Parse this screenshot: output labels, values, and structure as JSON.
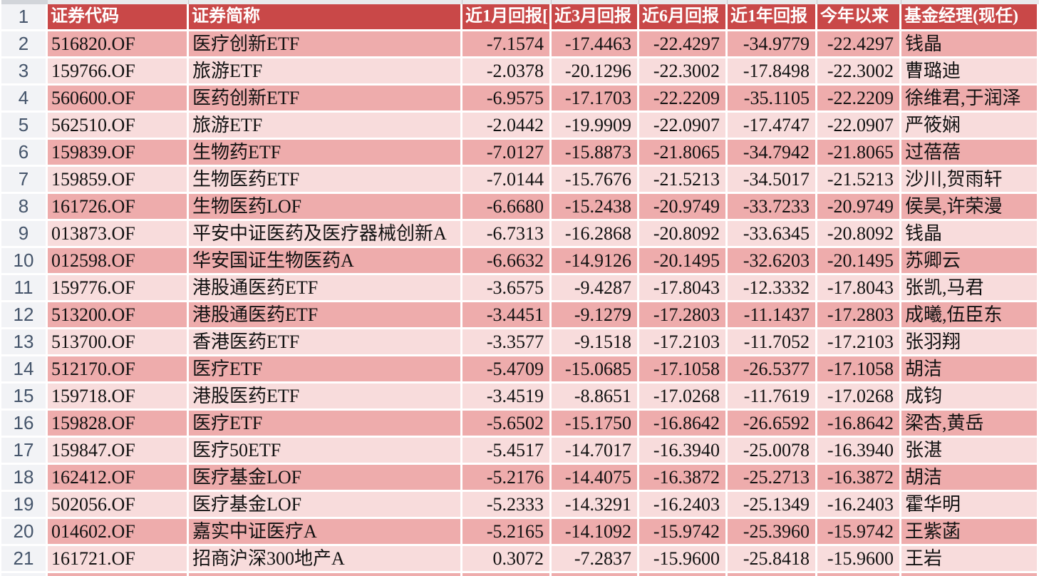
{
  "app": {
    "type": "spreadsheet",
    "view": "fund-returns-table"
  },
  "colors": {
    "header_bg": "#c94848",
    "row_dark": "#eeacac",
    "row_light": "#f8dcdc",
    "header_text": "#ffffff",
    "rownum_text": "#44546a"
  },
  "table": {
    "header_row_number": "1",
    "header": {
      "code": "证券代码",
      "name": "证券简称",
      "r1m": "近1月回报[",
      "r3m": "近3月回报",
      "r6m": "近6月回报",
      "r1y": "近1年回报",
      "ytd": "今年以来",
      "manager": "基金经理(现任)"
    },
    "rows": [
      {
        "row": "2",
        "code": "516820.OF",
        "name": "医疗创新ETF",
        "r1m": "-7.1574",
        "r3m": "-17.4463",
        "r6m": "-22.4297",
        "r1y": "-34.9779",
        "ytd": "-22.4297",
        "manager": "钱晶"
      },
      {
        "row": "3",
        "code": "159766.OF",
        "name": "旅游ETF",
        "r1m": "-2.0378",
        "r3m": "-20.1296",
        "r6m": "-22.3002",
        "r1y": "-17.8498",
        "ytd": "-22.3002",
        "manager": "曹璐迪"
      },
      {
        "row": "4",
        "code": "560600.OF",
        "name": "医药创新ETF",
        "r1m": "-6.9575",
        "r3m": "-17.1703",
        "r6m": "-22.2209",
        "r1y": "-35.1105",
        "ytd": "-22.2209",
        "manager": "徐维君,于润泽"
      },
      {
        "row": "5",
        "code": "562510.OF",
        "name": "旅游ETF",
        "r1m": "-2.0442",
        "r3m": "-19.9909",
        "r6m": "-22.0907",
        "r1y": "-17.4747",
        "ytd": "-22.0907",
        "manager": "严筱娴"
      },
      {
        "row": "6",
        "code": "159839.OF",
        "name": "生物药ETF",
        "r1m": "-7.0127",
        "r3m": "-15.8873",
        "r6m": "-21.8065",
        "r1y": "-34.7942",
        "ytd": "-21.8065",
        "manager": "过蓓蓓"
      },
      {
        "row": "7",
        "code": "159859.OF",
        "name": "生物医药ETF",
        "r1m": "-7.0144",
        "r3m": "-15.7676",
        "r6m": "-21.5213",
        "r1y": "-34.5017",
        "ytd": "-21.5213",
        "manager": "沙川,贺雨轩"
      },
      {
        "row": "8",
        "code": "161726.OF",
        "name": "生物医药LOF",
        "r1m": "-6.6680",
        "r3m": "-15.2438",
        "r6m": "-20.9749",
        "r1y": "-33.7233",
        "ytd": "-20.9749",
        "manager": "侯昊,许荣漫"
      },
      {
        "row": "9",
        "code": "013873.OF",
        "name": "平安中证医药及医疗器械创新A",
        "r1m": "-6.7313",
        "r3m": "-16.2868",
        "r6m": "-20.8092",
        "r1y": "-33.6345",
        "ytd": "-20.8092",
        "manager": "钱晶"
      },
      {
        "row": "10",
        "code": "012598.OF",
        "name": "华安国证生物医药A",
        "r1m": "-6.6632",
        "r3m": "-14.9126",
        "r6m": "-20.1495",
        "r1y": "-32.6203",
        "ytd": "-20.1495",
        "manager": "苏卿云"
      },
      {
        "row": "11",
        "code": "159776.OF",
        "name": "港股通医药ETF",
        "r1m": "-3.6575",
        "r3m": "-9.4287",
        "r6m": "-17.8043",
        "r1y": "-12.3332",
        "ytd": "-17.8043",
        "manager": "张凯,马君"
      },
      {
        "row": "12",
        "code": "513200.OF",
        "name": "港股通医药ETF",
        "r1m": "-3.4451",
        "r3m": "-9.1279",
        "r6m": "-17.2803",
        "r1y": "-11.1437",
        "ytd": "-17.2803",
        "manager": "成曦,伍臣东"
      },
      {
        "row": "13",
        "code": "513700.OF",
        "name": "香港医药ETF",
        "r1m": "-3.3577",
        "r3m": "-9.1518",
        "r6m": "-17.2103",
        "r1y": "-11.7052",
        "ytd": "-17.2103",
        "manager": "张羽翔"
      },
      {
        "row": "14",
        "code": "512170.OF",
        "name": "医疗ETF",
        "r1m": "-5.4709",
        "r3m": "-15.0685",
        "r6m": "-17.1058",
        "r1y": "-26.5377",
        "ytd": "-17.1058",
        "manager": "胡洁"
      },
      {
        "row": "15",
        "code": "159718.OF",
        "name": "港股医药ETF",
        "r1m": "-3.4519",
        "r3m": "-8.8651",
        "r6m": "-17.0268",
        "r1y": "-11.7619",
        "ytd": "-17.0268",
        "manager": "成钧"
      },
      {
        "row": "16",
        "code": "159828.OF",
        "name": "医疗ETF",
        "r1m": "-5.6502",
        "r3m": "-15.1750",
        "r6m": "-16.8642",
        "r1y": "-26.6592",
        "ytd": "-16.8642",
        "manager": "梁杏,黄岳"
      },
      {
        "row": "17",
        "code": "159847.OF",
        "name": "医疗50ETF",
        "r1m": "-5.4517",
        "r3m": "-14.7017",
        "r6m": "-16.3940",
        "r1y": "-25.0078",
        "ytd": "-16.3940",
        "manager": "张湛"
      },
      {
        "row": "18",
        "code": "162412.OF",
        "name": "医疗基金LOF",
        "r1m": "-5.2176",
        "r3m": "-14.4075",
        "r6m": "-16.3872",
        "r1y": "-25.2713",
        "ytd": "-16.3872",
        "manager": "胡洁"
      },
      {
        "row": "19",
        "code": "502056.OF",
        "name": "医疗基金LOF",
        "r1m": "-5.2333",
        "r3m": "-14.3291",
        "r6m": "-16.2403",
        "r1y": "-25.1349",
        "ytd": "-16.2403",
        "manager": "霍华明"
      },
      {
        "row": "20",
        "code": "014602.OF",
        "name": "嘉实中证医疗A",
        "r1m": "-5.2165",
        "r3m": "-14.1092",
        "r6m": "-15.9742",
        "r1y": "-25.3960",
        "ytd": "-15.9742",
        "manager": "王紫菡"
      },
      {
        "row": "21",
        "code": "161721.OF",
        "name": "招商沪深300地产A",
        "r1m": "0.3072",
        "r3m": "-7.2837",
        "r6m": "-15.9600",
        "r1y": "-25.8418",
        "ytd": "-15.9600",
        "manager": "王岩"
      }
    ]
  }
}
